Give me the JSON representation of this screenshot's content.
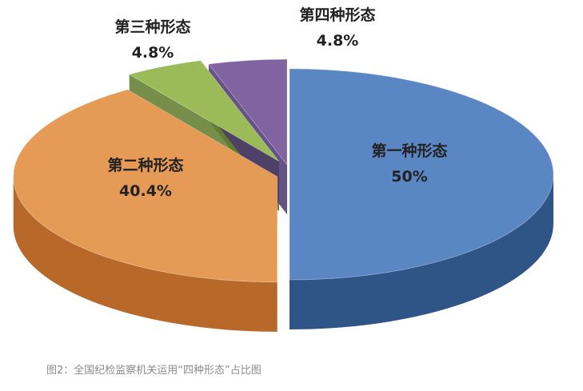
{
  "chart_data": {
    "type": "pie",
    "style": "3d-exploded",
    "slices": [
      {
        "name": "第一种形态",
        "value": 50,
        "value_label": "50%",
        "color": "#5b86c4",
        "side_color": "#2f5486"
      },
      {
        "name": "第二种形态",
        "value": 40.4,
        "value_label": "40.4%",
        "color": "#e59a55",
        "side_color": "#b8692a"
      },
      {
        "name": "第三种形态",
        "value": 4.8,
        "value_label": "4.8%",
        "color": "#9bbb59",
        "side_color": "#5e7a2a"
      },
      {
        "name": "第四种形态",
        "value": 4.8,
        "value_label": "4.8%",
        "color": "#8064a2",
        "side_color": "#4b3570"
      }
    ],
    "legend": "none"
  },
  "caption": "图2：全国纪检监察机关运用“四种形态”占比图"
}
